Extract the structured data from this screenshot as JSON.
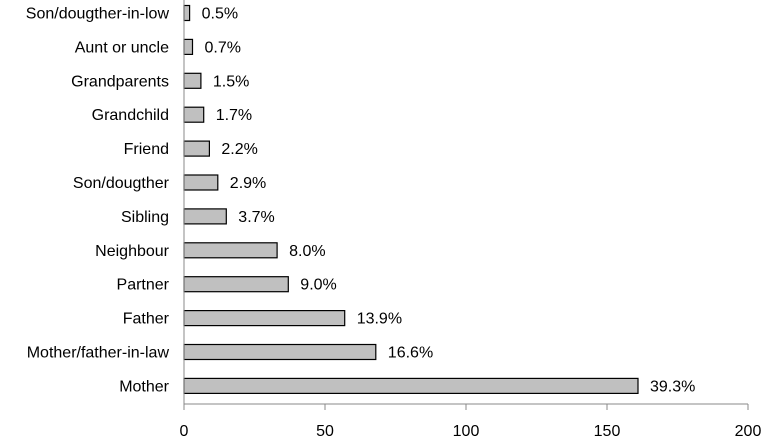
{
  "chart_data": {
    "type": "bar",
    "orientation": "horizontal",
    "categories": [
      "Son/dougther-in-low",
      "Aunt or uncle",
      "Grandparents",
      "Grandchild",
      "Friend",
      "Son/dougther",
      "Sibling",
      "Neighbour",
      "Partner",
      "Father",
      "Mother/father-in-law",
      "Mother"
    ],
    "values": [
      2,
      3,
      6,
      7,
      9,
      12,
      15,
      33,
      37,
      57,
      68,
      161
    ],
    "data_labels": [
      "0.5%",
      "0.7%",
      "1.5%",
      "1.7%",
      "2.2%",
      "2.9%",
      "3.7%",
      "8.0%",
      "9.0%",
      "13.9%",
      "16.6%",
      "39.3%"
    ],
    "xlim": [
      0,
      200
    ],
    "xticks": [
      "0",
      "50",
      "100",
      "150",
      "200"
    ],
    "title": "",
    "xlabel": "",
    "ylabel": "",
    "grid": false,
    "bar_color": "#c0c0c0"
  }
}
